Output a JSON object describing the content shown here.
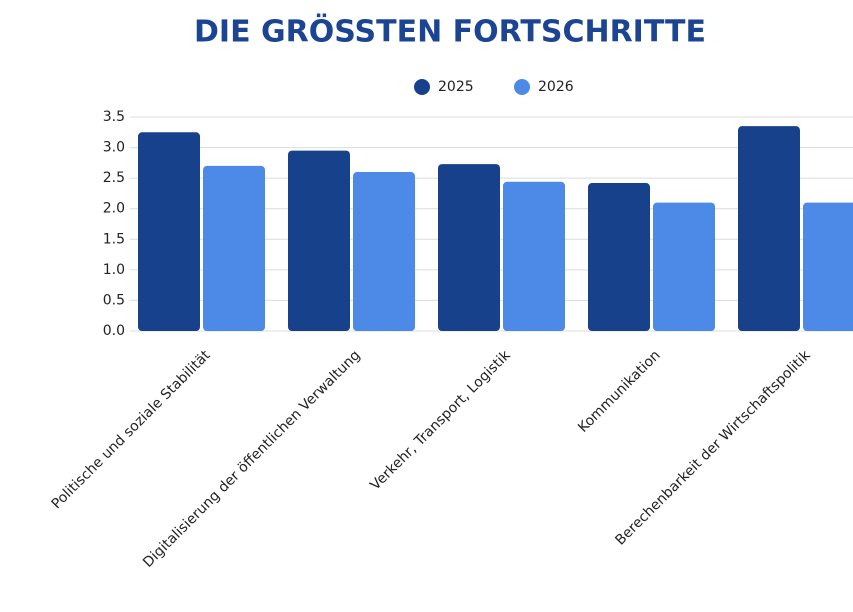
{
  "chart_data": {
    "type": "bar",
    "title": "DIE GRÖSSTEN FORTSCHRITTE",
    "categories": [
      "Politische und soziale Stabilität",
      "Digitalisierung der öffentlichen Verwaltung",
      "Verkehr, Transport, Logistik",
      "Kommunikation",
      "Berechenbarkeit der Wirtschaftspolitik"
    ],
    "series": [
      {
        "name": "2025",
        "color": "#17418a",
        "values": [
          3.25,
          2.95,
          2.73,
          2.42,
          3.35
        ]
      },
      {
        "name": "2026",
        "color": "#4d8ae8",
        "values": [
          2.7,
          2.6,
          2.44,
          2.1,
          2.1
        ]
      }
    ],
    "ylim": [
      0,
      3.5
    ],
    "yticks": [
      {
        "value": 0,
        "label": "0.0"
      },
      0.5,
      {
        "value": 1,
        "label": "1.0"
      },
      1.5,
      {
        "value": 2,
        "label": "2.0"
      },
      2.5,
      {
        "value": 3,
        "label": "3.0"
      },
      3.5
    ],
    "grid": true,
    "legend": "top"
  }
}
